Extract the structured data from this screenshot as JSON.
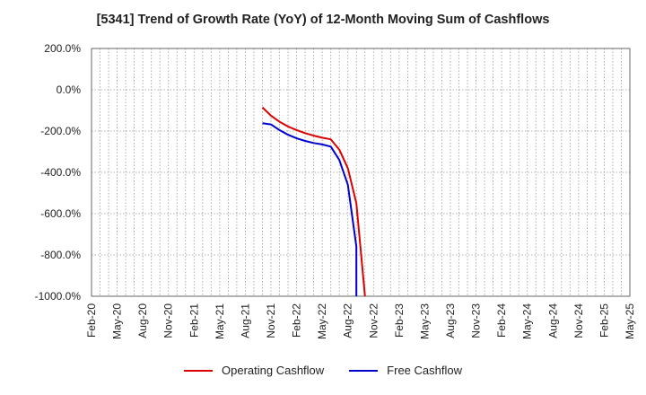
{
  "chart_data": {
    "type": "line",
    "title": "[5341]  Trend of Growth Rate (YoY) of 12-Month Moving Sum of Cashflows",
    "xlabel": "",
    "ylabel": "",
    "x_tick_labels": [
      "Feb-20",
      "May-20",
      "Aug-20",
      "Nov-20",
      "Feb-21",
      "May-21",
      "Aug-21",
      "Nov-21",
      "Feb-22",
      "May-22",
      "Aug-22",
      "Nov-22",
      "Feb-23",
      "May-23",
      "Aug-23",
      "Nov-23",
      "Feb-24",
      "May-24",
      "Aug-24",
      "Nov-24",
      "Feb-25",
      "May-25"
    ],
    "x_range": [
      "Feb-20",
      "May-25"
    ],
    "y_tick_labels": [
      "200.0%",
      "0.0%",
      "-200.0%",
      "-400.0%",
      "-600.0%",
      "-800.0%",
      "-1000.0%"
    ],
    "y_ticks": [
      200,
      0,
      -200,
      -400,
      -600,
      -800,
      -1000
    ],
    "ylim": [
      -1000,
      200
    ],
    "grid": true,
    "legend_position": "bottom",
    "series": [
      {
        "name": "Operating Cashflow",
        "color": "#dd0000",
        "points": [
          [
            "Oct-21",
            -85
          ],
          [
            "Nov-21",
            -125
          ],
          [
            "Dec-21",
            -155
          ],
          [
            "Jan-22",
            -178
          ],
          [
            "Feb-22",
            -195
          ],
          [
            "Mar-22",
            -210
          ],
          [
            "Apr-22",
            -222
          ],
          [
            "May-22",
            -232
          ],
          [
            "Jun-22",
            -240
          ],
          [
            "Jul-22",
            -290
          ],
          [
            "Aug-22",
            -380
          ],
          [
            "Sep-22",
            -550
          ],
          [
            "Oct-22",
            -1000
          ]
        ]
      },
      {
        "name": "Free Cashflow",
        "color": "#0000cc",
        "points": [
          [
            "Oct-21",
            -162
          ],
          [
            "Nov-21",
            -168
          ],
          [
            "Dec-21",
            -195
          ],
          [
            "Jan-22",
            -218
          ],
          [
            "Feb-22",
            -235
          ],
          [
            "Mar-22",
            -248
          ],
          [
            "Apr-22",
            -258
          ],
          [
            "May-22",
            -265
          ],
          [
            "Jun-22",
            -275
          ],
          [
            "Jul-22",
            -340
          ],
          [
            "Aug-22",
            -460
          ],
          [
            "Sep-22",
            -760
          ],
          [
            "Sep-22",
            -1000
          ]
        ]
      }
    ]
  }
}
